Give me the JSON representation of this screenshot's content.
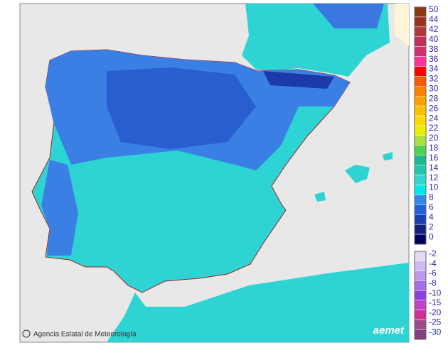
{
  "legend": {
    "upper": [
      {
        "label": "50",
        "color": "#8a3a10"
      },
      {
        "label": "44",
        "color": "#9a3020"
      },
      {
        "label": "42",
        "color": "#b03838"
      },
      {
        "label": "40",
        "color": "#c0305a"
      },
      {
        "label": "38",
        "color": "#d03070"
      },
      {
        "label": "36",
        "color": "#ff3399"
      },
      {
        "label": "34",
        "color": "#ff0000"
      },
      {
        "label": "32",
        "color": "#ff5a00"
      },
      {
        "label": "30",
        "color": "#ff8000"
      },
      {
        "label": "28",
        "color": "#ffa000"
      },
      {
        "label": "26",
        "color": "#ffc000"
      },
      {
        "label": "24",
        "color": "#ffd800"
      },
      {
        "label": "22",
        "color": "#e8f000"
      },
      {
        "label": "20",
        "color": "#a8e040"
      },
      {
        "label": "18",
        "color": "#50d050"
      },
      {
        "label": "16",
        "color": "#20b890"
      },
      {
        "label": "14",
        "color": "#20c8b0"
      },
      {
        "label": "12",
        "color": "#30d8d0"
      },
      {
        "label": "10",
        "color": "#00e8e8"
      },
      {
        "label": "8",
        "color": "#3088e8"
      },
      {
        "label": "6",
        "color": "#2060d8"
      },
      {
        "label": "4",
        "color": "#1840b0"
      },
      {
        "label": "2",
        "color": "#102080"
      },
      {
        "label": "0",
        "color": "#000060"
      }
    ],
    "lower": [
      {
        "label": "-2",
        "color": "#e4d8f4"
      },
      {
        "label": "-4",
        "color": "#d0b8f0"
      },
      {
        "label": "-6",
        "color": "#bc98ec"
      },
      {
        "label": "-8",
        "color": "#a070e4"
      },
      {
        "label": "-10",
        "color": "#8c40e0"
      },
      {
        "label": "-15",
        "color": "#c040c8"
      },
      {
        "label": "-20",
        "color": "#d03090"
      },
      {
        "label": "-25",
        "color": "#a04888"
      },
      {
        "label": "-30",
        "color": "#804080"
      }
    ]
  },
  "credit": "Agencia Estatal de Meteorología",
  "logo": "aemet"
}
